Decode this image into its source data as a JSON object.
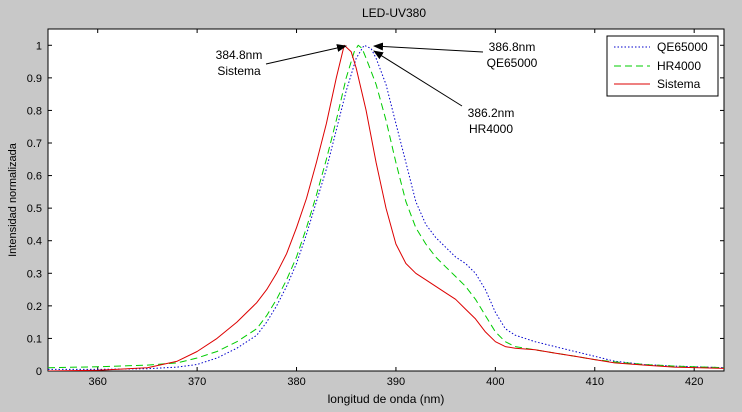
{
  "chart_data": {
    "type": "line",
    "title": "LED-UV380",
    "xlabel": "longitud de onda (nm)",
    "ylabel": "Intensidad normalizada",
    "xlim": [
      355,
      423
    ],
    "ylim": [
      0,
      1.05
    ],
    "xticks": [
      360,
      370,
      380,
      390,
      400,
      410,
      420
    ],
    "yticks": [
      0,
      0.1,
      0.2,
      0.3,
      0.4,
      0.5,
      0.6,
      0.7,
      0.8,
      0.9,
      1
    ],
    "grid": false,
    "legend_position": "top-right",
    "series": [
      {
        "name": "QE65000",
        "color": "#0000cc",
        "style": "dotted",
        "points": [
          [
            355,
            0.005
          ],
          [
            360,
            0.005
          ],
          [
            365,
            0.007
          ],
          [
            368,
            0.012
          ],
          [
            370,
            0.02
          ],
          [
            372,
            0.04
          ],
          [
            374,
            0.07
          ],
          [
            376,
            0.11
          ],
          [
            377,
            0.15
          ],
          [
            378,
            0.2
          ],
          [
            379,
            0.26
          ],
          [
            380,
            0.33
          ],
          [
            381,
            0.42
          ],
          [
            382,
            0.52
          ],
          [
            383,
            0.62
          ],
          [
            384,
            0.74
          ],
          [
            385,
            0.86
          ],
          [
            386,
            0.96
          ],
          [
            386.8,
            1.0
          ],
          [
            387.5,
            0.99
          ],
          [
            388,
            0.96
          ],
          [
            389,
            0.88
          ],
          [
            390,
            0.76
          ],
          [
            391,
            0.64
          ],
          [
            392,
            0.52
          ],
          [
            393,
            0.45
          ],
          [
            394,
            0.41
          ],
          [
            395,
            0.38
          ],
          [
            396,
            0.35
          ],
          [
            397,
            0.33
          ],
          [
            398,
            0.3
          ],
          [
            399,
            0.25
          ],
          [
            400,
            0.18
          ],
          [
            401,
            0.13
          ],
          [
            402,
            0.11
          ],
          [
            404,
            0.09
          ],
          [
            406,
            0.075
          ],
          [
            408,
            0.06
          ],
          [
            410,
            0.045
          ],
          [
            412,
            0.03
          ],
          [
            415,
            0.02
          ],
          [
            418,
            0.015
          ],
          [
            423,
            0.01
          ]
        ]
      },
      {
        "name": "HR4000",
        "color": "#00cc00",
        "style": "dashed",
        "points": [
          [
            355,
            0.01
          ],
          [
            360,
            0.013
          ],
          [
            365,
            0.018
          ],
          [
            368,
            0.025
          ],
          [
            370,
            0.04
          ],
          [
            372,
            0.06
          ],
          [
            374,
            0.09
          ],
          [
            376,
            0.13
          ],
          [
            377,
            0.17
          ],
          [
            378,
            0.22
          ],
          [
            379,
            0.28
          ],
          [
            380,
            0.35
          ],
          [
            381,
            0.44
          ],
          [
            382,
            0.54
          ],
          [
            383,
            0.65
          ],
          [
            384,
            0.77
          ],
          [
            385,
            0.9
          ],
          [
            385.8,
            0.98
          ],
          [
            386.2,
            1.0
          ],
          [
            386.6,
            0.99
          ],
          [
            387,
            0.96
          ],
          [
            388,
            0.88
          ],
          [
            389,
            0.77
          ],
          [
            390,
            0.64
          ],
          [
            391,
            0.52
          ],
          [
            392,
            0.44
          ],
          [
            393,
            0.39
          ],
          [
            394,
            0.35
          ],
          [
            395,
            0.32
          ],
          [
            396,
            0.29
          ],
          [
            397,
            0.26
          ],
          [
            398,
            0.22
          ],
          [
            399,
            0.17
          ],
          [
            400,
            0.12
          ],
          [
            401,
            0.09
          ],
          [
            402,
            0.075
          ],
          [
            404,
            0.065
          ],
          [
            406,
            0.055
          ],
          [
            408,
            0.045
          ],
          [
            410,
            0.035
          ],
          [
            412,
            0.028
          ],
          [
            415,
            0.02
          ],
          [
            418,
            0.015
          ],
          [
            423,
            0.01
          ]
        ]
      },
      {
        "name": "Sistema",
        "color": "#dd0000",
        "style": "solid",
        "points": [
          [
            355,
            0.0
          ],
          [
            360,
            0.002
          ],
          [
            365,
            0.01
          ],
          [
            368,
            0.03
          ],
          [
            370,
            0.06
          ],
          [
            372,
            0.1
          ],
          [
            374,
            0.15
          ],
          [
            376,
            0.21
          ],
          [
            377,
            0.25
          ],
          [
            378,
            0.3
          ],
          [
            379,
            0.36
          ],
          [
            380,
            0.44
          ],
          [
            381,
            0.53
          ],
          [
            382,
            0.64
          ],
          [
            383,
            0.76
          ],
          [
            384,
            0.9
          ],
          [
            384.8,
            1.0
          ],
          [
            385.5,
            0.98
          ],
          [
            386,
            0.93
          ],
          [
            387,
            0.8
          ],
          [
            388,
            0.64
          ],
          [
            389,
            0.5
          ],
          [
            390,
            0.39
          ],
          [
            391,
            0.33
          ],
          [
            392,
            0.3
          ],
          [
            393,
            0.28
          ],
          [
            394,
            0.26
          ],
          [
            395,
            0.24
          ],
          [
            396,
            0.22
          ],
          [
            397,
            0.19
          ],
          [
            398,
            0.16
          ],
          [
            399,
            0.12
          ],
          [
            400,
            0.09
          ],
          [
            401,
            0.075
          ],
          [
            402,
            0.07
          ],
          [
            404,
            0.065
          ],
          [
            406,
            0.055
          ],
          [
            408,
            0.045
          ],
          [
            410,
            0.035
          ],
          [
            412,
            0.025
          ],
          [
            415,
            0.018
          ],
          [
            418,
            0.012
          ],
          [
            423,
            0.008
          ]
        ]
      }
    ],
    "annotations": [
      {
        "lines": [
          "384.8nm",
          "Sistema"
        ],
        "x": 384.8,
        "y": 1.0
      },
      {
        "lines": [
          "386.8nm",
          "QE65000"
        ],
        "x": 386.8,
        "y": 1.0
      },
      {
        "lines": [
          "386.2nm",
          "HR4000"
        ],
        "x": 386.2,
        "y": 1.0
      }
    ]
  }
}
